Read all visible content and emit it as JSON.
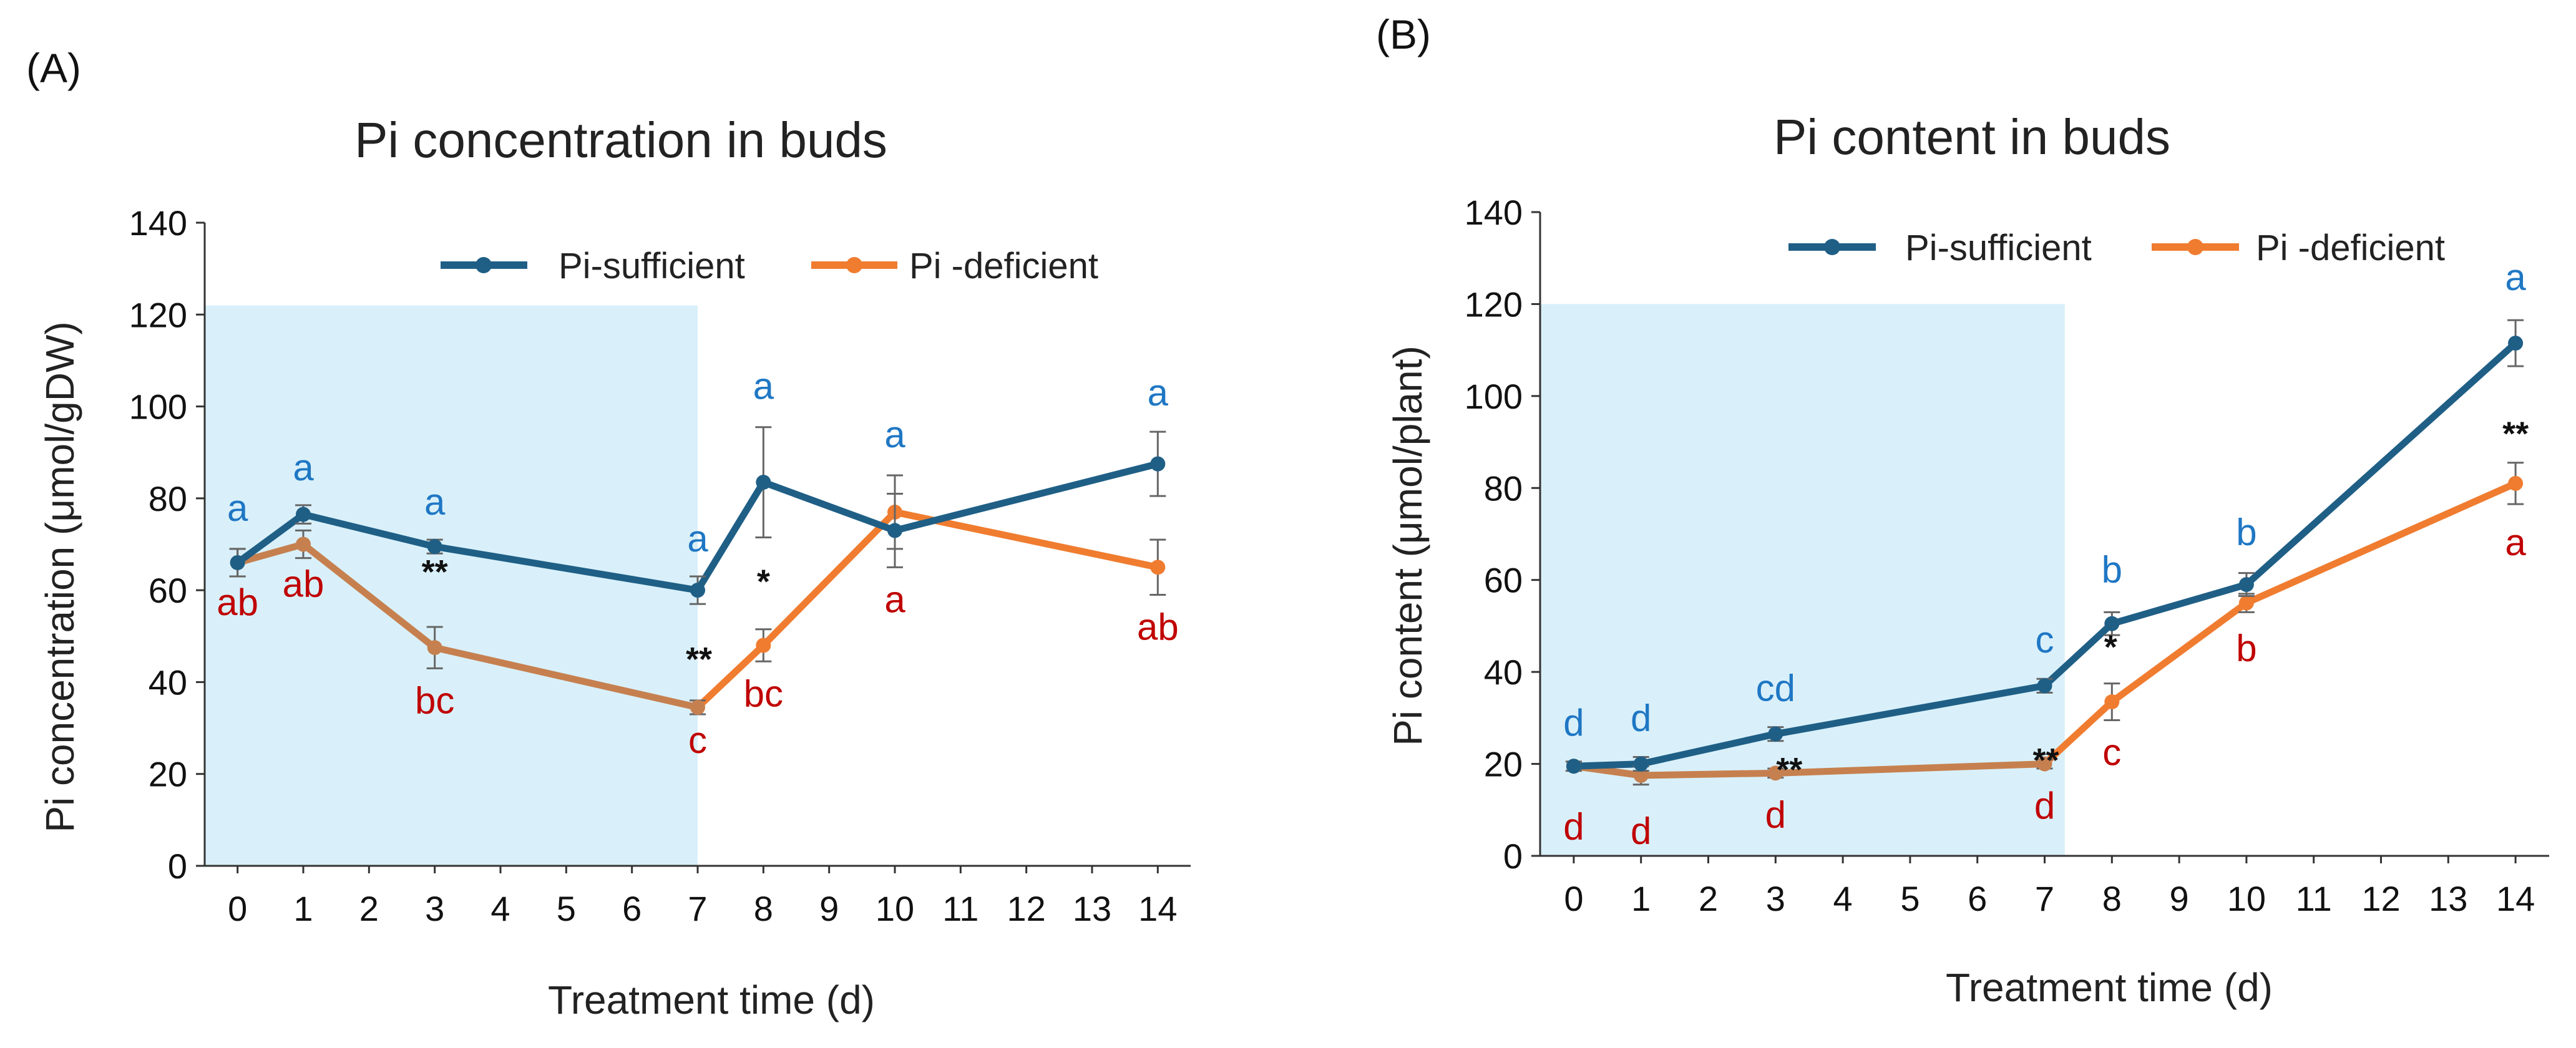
{
  "chart_data": [
    {
      "type": "line",
      "panel_label": "(A)",
      "title": "Pi concentration in buds",
      "xlabel": "Treatment time (d)",
      "ylabel": "Pi concentration (μmol/gDW)",
      "xlim": [
        -0.5,
        14.5
      ],
      "ylim": [
        0,
        140
      ],
      "x_ticks": [
        0,
        1,
        2,
        3,
        4,
        5,
        6,
        7,
        8,
        9,
        10,
        11,
        12,
        13,
        14
      ],
      "y_ticks": [
        0,
        20,
        40,
        60,
        80,
        100,
        120,
        140
      ],
      "shaded_region": {
        "x_end": 7,
        "y_top": 122,
        "color": "#d9f0fa"
      },
      "legend_position": "top-right",
      "series": [
        {
          "name": "Pi-sufficient",
          "color": "#1f5f86",
          "x": [
            0,
            1,
            3,
            7,
            8,
            10,
            14
          ],
          "y": [
            66,
            76.5,
            69.5,
            60,
            83.5,
            73,
            87.5
          ],
          "err": [
            3,
            2,
            1.5,
            3,
            12,
            8,
            7
          ],
          "letters": [
            "a",
            "a",
            "a",
            "a",
            "a",
            "a",
            "a"
          ],
          "letter_color": "#1f77c4"
        },
        {
          "name": "Pi -deficient",
          "color_before": "#c6804f",
          "color_after": "#f07c30",
          "x": [
            0,
            1,
            3,
            7,
            8,
            10,
            14
          ],
          "y": [
            66,
            70,
            47.5,
            34.5,
            48,
            77,
            65
          ],
          "err": [
            3,
            3,
            4.5,
            1.5,
            3.5,
            8,
            6
          ],
          "letters": [
            "ab",
            "ab",
            "bc",
            "c",
            "bc",
            "a",
            "ab"
          ],
          "letter_color": "#c00000"
        }
      ],
      "significance": [
        {
          "x": 3,
          "label": "**"
        },
        {
          "x": 7,
          "label": "**"
        },
        {
          "x": 8,
          "label": "*"
        }
      ]
    },
    {
      "type": "line",
      "panel_label": "(B)",
      "title": "Pi content in buds",
      "xlabel": "Treatment time (d)",
      "ylabel": "Pi content (μmol/plant)",
      "xlim": [
        -0.5,
        14.5
      ],
      "ylim": [
        0,
        140
      ],
      "x_ticks": [
        0,
        1,
        2,
        3,
        4,
        5,
        6,
        7,
        8,
        9,
        10,
        11,
        12,
        13,
        14
      ],
      "y_ticks": [
        0,
        20,
        40,
        60,
        80,
        100,
        120,
        140
      ],
      "shaded_region": {
        "x_end": 7.3,
        "y_top": 120,
        "color": "#d9f0fa"
      },
      "legend_position": "top-right",
      "series": [
        {
          "name": "Pi-sufficient",
          "color": "#1f5f86",
          "x": [
            0,
            1,
            3,
            7,
            8,
            10,
            14
          ],
          "y": [
            19.5,
            20,
            26.5,
            37,
            50.5,
            59,
            111.5
          ],
          "err": [
            1,
            1.5,
            1.5,
            1.5,
            2.5,
            2.5,
            5
          ],
          "letters": [
            "d",
            "d",
            "cd",
            "c",
            "b",
            "b",
            "a"
          ],
          "letter_color": "#1f77c4"
        },
        {
          "name": "Pi -deficient",
          "color_before": "#c6804f",
          "color_after": "#f07c30",
          "x": [
            0,
            1,
            3,
            7,
            8,
            10,
            14
          ],
          "y": [
            19.5,
            17.5,
            18,
            20,
            33.5,
            55,
            81
          ],
          "err": [
            1,
            2,
            1,
            1,
            4,
            2,
            4.5
          ],
          "letters": [
            "d",
            "d",
            "d",
            "d",
            "c",
            "b",
            "a"
          ],
          "letter_color": "#c00000"
        }
      ],
      "significance": [
        {
          "x": 3,
          "label": "**"
        },
        {
          "x": 7,
          "label": "**"
        },
        {
          "x": 8,
          "label": "*"
        },
        {
          "x": 14,
          "label": "**"
        }
      ]
    }
  ]
}
